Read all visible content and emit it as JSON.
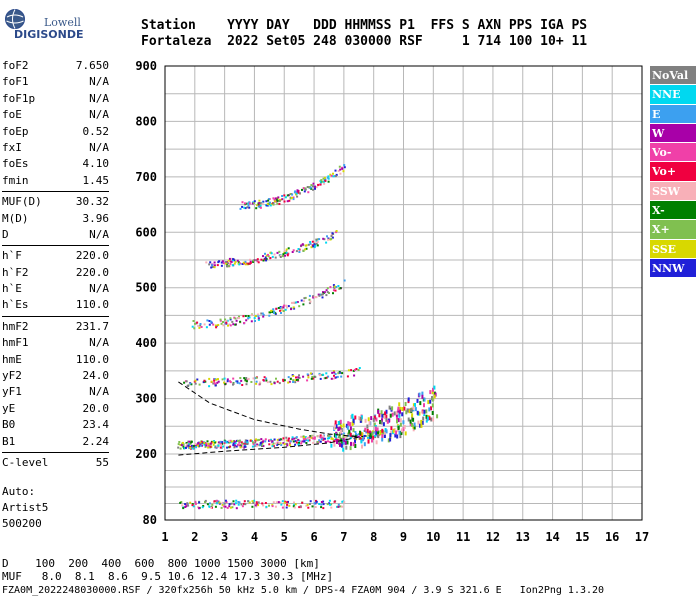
{
  "logo": {
    "line1": "Lowell",
    "line2": "DIGISONDE"
  },
  "header": {
    "line1": "Station    YYYY DAY   DDD HHMMSS P1  FFS S AXN PPS IGA PS",
    "line2": "Fortaleza  2022 Set05 248 030000 RSF     1 714 100 10+ 11"
  },
  "parameters": [
    [
      {
        "name": "foF2",
        "value": "7.650"
      },
      {
        "name": "foF1",
        "value": "N/A"
      },
      {
        "name": "foF1p",
        "value": "N/A"
      },
      {
        "name": "foE",
        "value": "N/A"
      },
      {
        "name": "foEp",
        "value": "0.52"
      },
      {
        "name": "fxI",
        "value": "N/A"
      },
      {
        "name": "foEs",
        "value": "4.10"
      },
      {
        "name": "fmin",
        "value": "1.45"
      }
    ],
    [
      {
        "name": "MUF(D)",
        "value": "30.32"
      },
      {
        "name": "M(D)",
        "value": "3.96"
      },
      {
        "name": "D",
        "value": "N/A"
      }
    ],
    [
      {
        "name": "h`F",
        "value": "220.0"
      },
      {
        "name": "h`F2",
        "value": "220.0"
      },
      {
        "name": "h`E",
        "value": "N/A"
      },
      {
        "name": "h`Es",
        "value": "110.0"
      }
    ],
    [
      {
        "name": "hmF2",
        "value": "231.7"
      },
      {
        "name": "hmF1",
        "value": "N/A"
      },
      {
        "name": "hmE",
        "value": "110.0"
      },
      {
        "name": "yF2",
        "value": "24.0"
      },
      {
        "name": "yF1",
        "value": "N/A"
      },
      {
        "name": "yE",
        "value": "20.0"
      },
      {
        "name": "B0",
        "value": "23.4"
      },
      {
        "name": "B1",
        "value": "2.24"
      }
    ],
    [
      {
        "name": "C-level",
        "value": "55"
      }
    ]
  ],
  "auto": {
    "line1": "Auto:",
    "line2": "Artist5",
    "line3": "500200"
  },
  "legend": [
    {
      "label": "NoVal",
      "color": "#808080"
    },
    {
      "label": "NNE",
      "color": "#00d8f0"
    },
    {
      "label": "E",
      "color": "#3ca0f0"
    },
    {
      "label": "W",
      "color": "#a800a8"
    },
    {
      "label": "Vo-",
      "color": "#f040a8"
    },
    {
      "label": "Vo+",
      "color": "#f00040"
    },
    {
      "label": "SSW",
      "color": "#f8b0b8"
    },
    {
      "label": "X-",
      "color": "#008000"
    },
    {
      "label": "X+",
      "color": "#80c050"
    },
    {
      "label": "SSE",
      "color": "#d8d800"
    },
    {
      "label": "NNW",
      "color": "#2020d8"
    }
  ],
  "footer": {
    "line1": "D    100  200  400  600  800 1000 1500 3000 [km]",
    "line2": "MUF   8.0  8.1  8.6  9.5 10.6 12.4 17.3 30.3 [MHz]",
    "line3": "FZA0M_2022248030000.RSF / 320fx256h 50 kHz 5.0 km / DPS-4 FZA0M 904 / 3.9 S 321.6 E   Ion2Png 1.3.20"
  },
  "chart_data": {
    "type": "scatter",
    "title": "",
    "xlabel": "",
    "ylabel": "",
    "xlim": [
      1,
      17
    ],
    "ylim": [
      80,
      900
    ],
    "x_ticks": [
      1,
      2,
      3,
      4,
      5,
      6,
      7,
      8,
      9,
      10,
      11,
      12,
      13,
      14,
      15,
      16,
      17
    ],
    "y_ticks": [
      80,
      200,
      300,
      400,
      500,
      600,
      700,
      800,
      900
    ],
    "y_tick_labels": [
      "80",
      "200",
      "300",
      "400",
      "500",
      "600",
      "700",
      "800",
      "900"
    ],
    "grid": true,
    "traces": [
      {
        "name": "F2 trace (1st hop)",
        "x_range": [
          1.4,
          8.2
        ],
        "h_start": 218,
        "h_end": 240
      },
      {
        "name": "F2 high-freq cusp",
        "x_range": [
          6.5,
          10.1
        ],
        "h_start": 240,
        "h_end": 300
      },
      {
        "name": "F multi-hop 2",
        "x_range": [
          1.6,
          7.5
        ],
        "h_start": 330,
        "h_end": 350
      },
      {
        "name": "F multi-hop 3",
        "x_range": [
          1.8,
          7.0
        ],
        "h_start": 435,
        "h_end": 510
      },
      {
        "name": "F multi-hop 4",
        "x_range": [
          2.3,
          6.8
        ],
        "h_start": 545,
        "h_end": 600
      },
      {
        "name": "F multi-hop 5",
        "x_range": [
          3.5,
          7.0
        ],
        "h_start": 650,
        "h_end": 720
      },
      {
        "name": "Es layer",
        "x_range": [
          1.4,
          7.0
        ],
        "h_start": 110,
        "h_end": 110
      }
    ],
    "profile_curves": [
      {
        "name": "upper dashed",
        "x": [
          1.45,
          2.5,
          4.0,
          5.5,
          6.5,
          7.5
        ],
        "y": [
          330,
          292,
          262,
          245,
          236,
          231
        ]
      },
      {
        "name": "lower dashed",
        "x": [
          1.45,
          3.0,
          5.0,
          6.5,
          7.65
        ],
        "y": [
          198,
          205,
          212,
          220,
          232
        ]
      }
    ]
  }
}
